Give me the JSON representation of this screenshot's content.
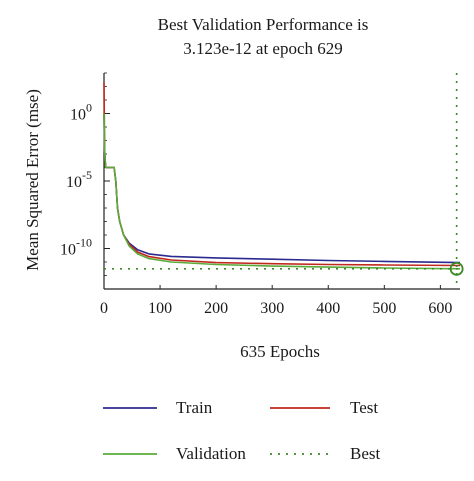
{
  "chart_data": {
    "type": "line",
    "title_lines": [
      "Best Validation Performance is",
      "3.123e-12 at epoch 629"
    ],
    "xlabel": "635 Epochs",
    "ylabel": "Mean Squared Error (mse)",
    "y_scale": "log",
    "xlim": [
      0,
      635
    ],
    "ylim": [
      1e-13,
      1000.0
    ],
    "grid": false,
    "x_ticks": [
      0,
      100,
      200,
      300,
      400,
      500,
      600
    ],
    "y_ticks": [
      {
        "value": 1,
        "base": "10",
        "exp": "0"
      },
      {
        "value": 1e-05,
        "base": "10",
        "exp": "-5"
      },
      {
        "value": 1e-10,
        "base": "10",
        "exp": "-10"
      }
    ],
    "series": [
      {
        "name": "Train",
        "color": "#2b2a8f",
        "x": [
          0,
          1,
          2,
          3,
          18,
          21,
          24,
          28,
          35,
          45,
          60,
          80,
          120,
          200,
          300,
          400,
          500,
          635
        ],
        "y": [
          1.0,
          0.002,
          0.0004,
          0.0001,
          0.0001,
          1e-05,
          1e-07,
          1e-08,
          1e-09,
          2.5e-10,
          8e-11,
          4e-11,
          2.6e-11,
          2e-11,
          1.6e-11,
          1.3e-11,
          1.1e-11,
          9e-12
        ]
      },
      {
        "name": "Test",
        "color": "#c0291e",
        "x": [
          0,
          1,
          2,
          3,
          18,
          21,
          24,
          28,
          35,
          45,
          60,
          80,
          120,
          200,
          300,
          400,
          500,
          635
        ],
        "y": [
          200,
          0.002,
          0.0004,
          0.0001,
          0.0001,
          1e-05,
          1e-07,
          1e-08,
          1e-09,
          2e-10,
          5.5e-11,
          2.5e-11,
          1.4e-11,
          9e-12,
          7.5e-12,
          6.5e-12,
          6e-12,
          5.5e-12
        ]
      },
      {
        "name": "Validation",
        "color": "#5aab3a",
        "x": [
          0,
          1,
          2,
          3,
          18,
          21,
          24,
          28,
          35,
          45,
          60,
          80,
          120,
          200,
          300,
          400,
          500,
          635
        ],
        "y": [
          1.0,
          0.002,
          0.0004,
          0.0001,
          0.0001,
          1e-05,
          1e-07,
          1e-08,
          1e-09,
          1.5e-10,
          4e-11,
          1.8e-11,
          1e-11,
          6.5e-12,
          5e-12,
          4.2e-12,
          3.6e-12,
          3.123e-12
        ]
      }
    ],
    "best": {
      "name": "Best",
      "epoch": 629,
      "value": 3.123e-12,
      "color": "#3a8a25"
    },
    "legend": {
      "placement": "bottom",
      "entries": [
        "Train",
        "Test",
        "Validation",
        "Best"
      ]
    }
  }
}
